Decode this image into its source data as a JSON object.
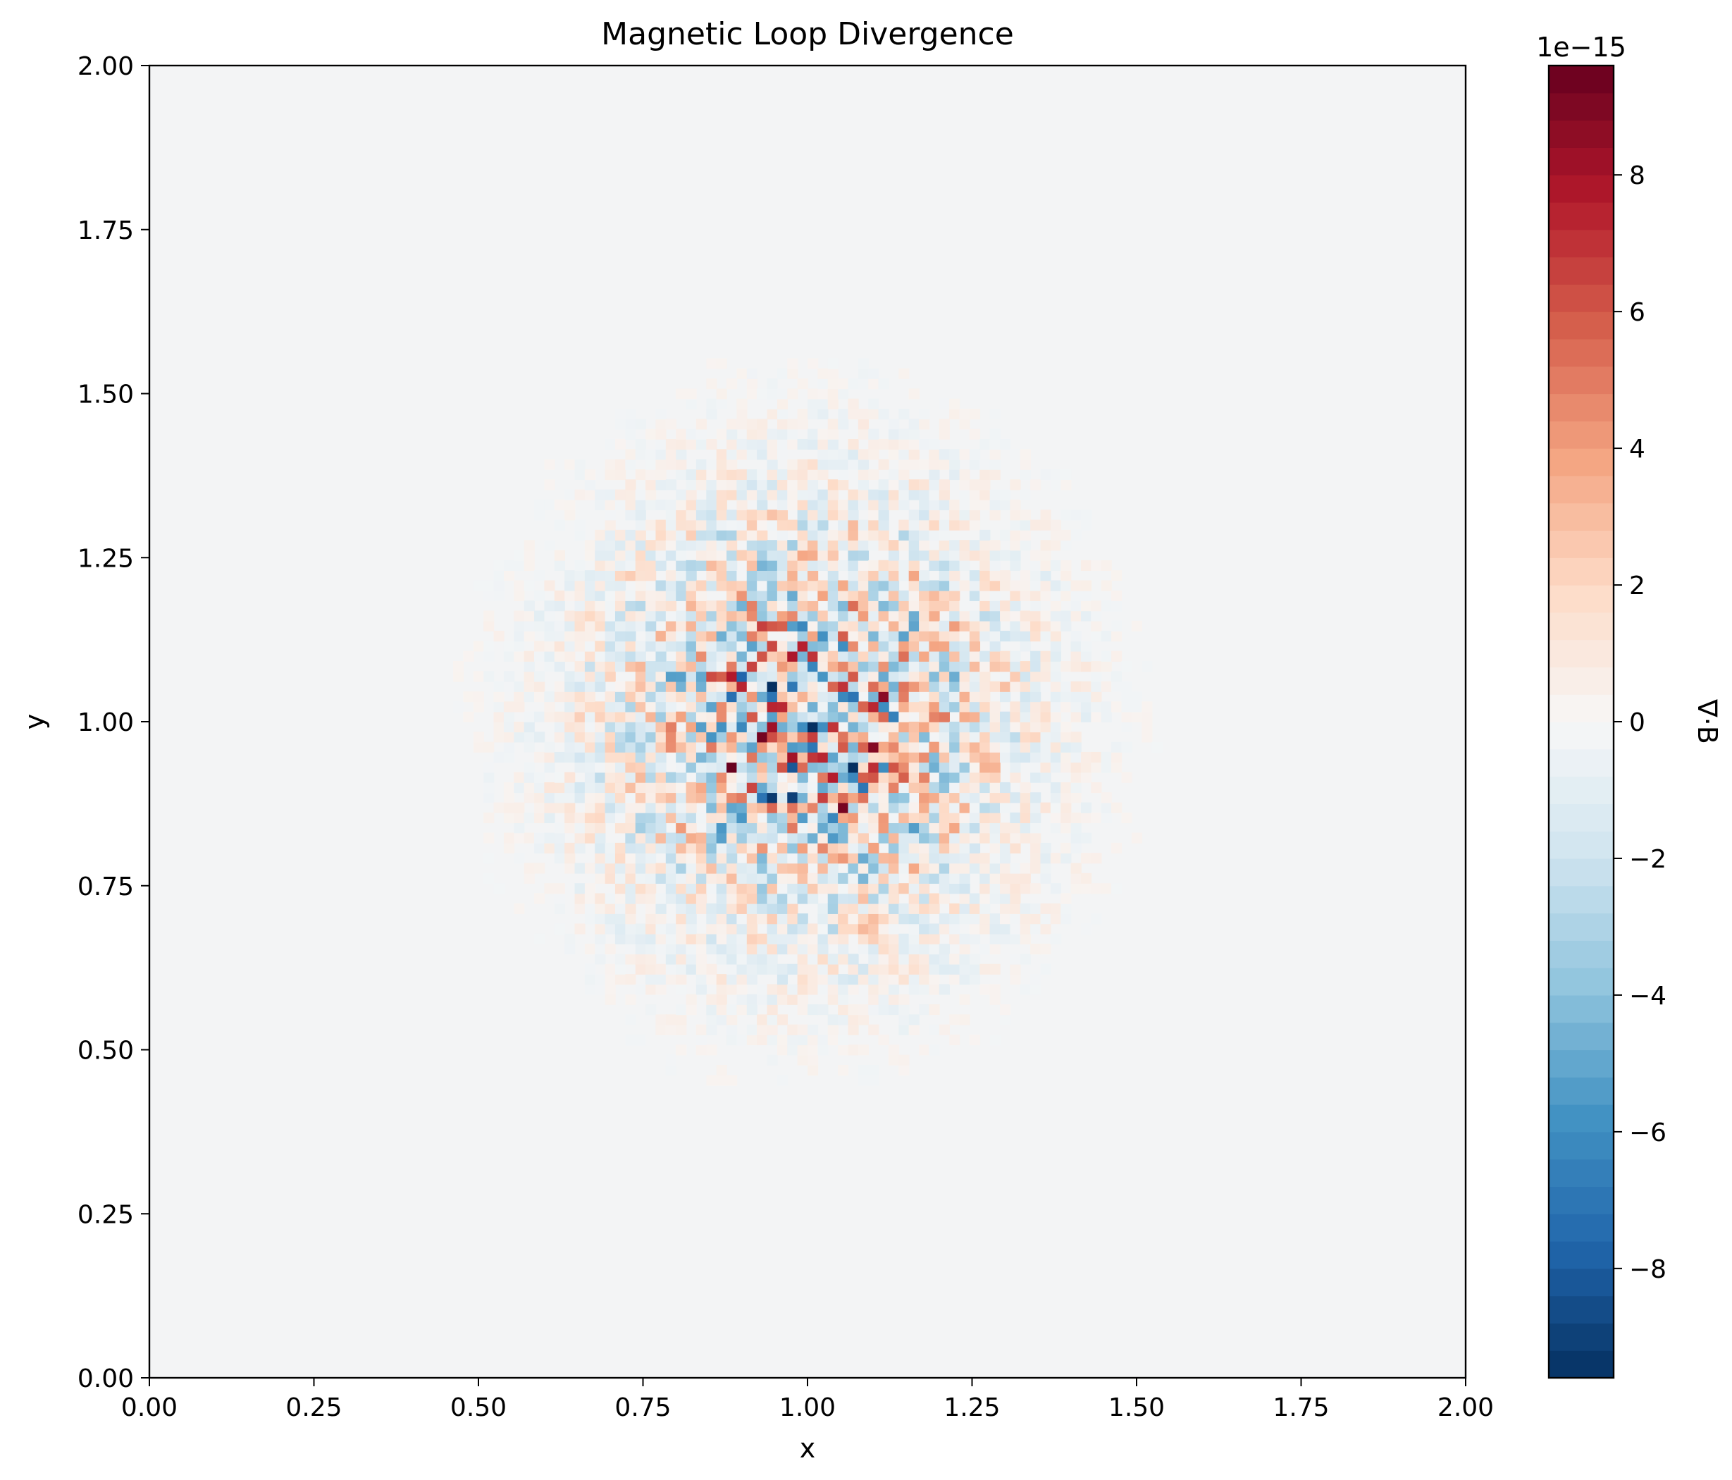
{
  "chart_data": {
    "type": "heatmap",
    "title": "Magnetic Loop Divergence",
    "xlabel": "x",
    "ylabel": "y",
    "xlim": [
      0,
      2
    ],
    "ylim": [
      0,
      2
    ],
    "xticks": [
      "0.00",
      "0.25",
      "0.50",
      "0.75",
      "1.00",
      "1.25",
      "1.50",
      "1.75",
      "2.00"
    ],
    "yticks": [
      "0.00",
      "0.25",
      "0.50",
      "0.75",
      "1.00",
      "1.25",
      "1.50",
      "1.75",
      "2.00"
    ],
    "grid": false,
    "colormap": "RdBu_r",
    "colorbar": {
      "label": "∇·B",
      "offset_text": "1e−15",
      "vmin": -9.6,
      "vmax": 9.6,
      "ticks": [
        -8,
        -6,
        -4,
        -2,
        0,
        2,
        4,
        6,
        8
      ],
      "tick_labels": [
        "−8",
        "−6",
        "−4",
        "−2",
        "0",
        "2",
        "4",
        "6",
        "8"
      ],
      "levels": 48
    },
    "field": {
      "center": [
        1.0,
        1.0
      ],
      "extent_radius": 0.58,
      "peak_amplitude": 9.6,
      "background_value": 0
    }
  }
}
